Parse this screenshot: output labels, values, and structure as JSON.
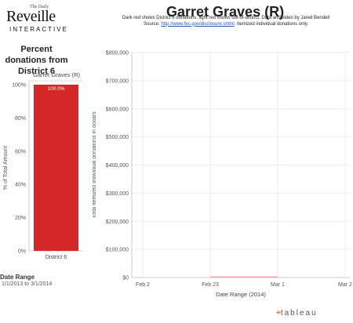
{
  "branding": {
    "logo_small": "The Daily",
    "logo_main": "Reveille",
    "logo_sub": "INTERACTIVE",
    "footer_logo": "+ t a b l e a u"
  },
  "header": {
    "title": "Garret Graves (R)",
    "subtitle_line1": "Dark red shows District 6 donations, light red shows out-of-district. Data and video by Jared Bendell",
    "subtitle_source_label": "Source:",
    "subtitle_source_link": "http://www.fec.gov/disclosure.shtml",
    "subtitle_tail": ". Itemized individual donations only."
  },
  "left_panel": {
    "title": "Percent donations from District 6",
    "date_range_label": "Date Range",
    "date_range_value": "1/1/2013 to 3/1/2014"
  },
  "colors": {
    "district_red": "#d62728",
    "out_of_district_red": "#f4a6a6",
    "axis_gray": "#cccccc",
    "text_gray": "#555555"
  },
  "chart_data": [
    {
      "type": "bar",
      "title": "Percent donations from District 6",
      "column_header": "Garret Graves (R)",
      "categories": [
        "District 6"
      ],
      "values": [
        100
      ],
      "data_labels": [
        "100.0%"
      ],
      "ylabel": "% of Total Amount",
      "ylim": [
        0,
        100
      ],
      "yticks": [
        "0%",
        "20%",
        "40%",
        "60%",
        "80%",
        "100%"
      ],
      "grid": false
    },
    {
      "type": "area",
      "xlabel": "Date Range (2014)",
      "ylabel": "Total itemized individual donations in dollars",
      "x_ticks": [
        "Feb 2",
        "Feb 23",
        "Mar 1",
        "Mar 2"
      ],
      "y_ticks": [
        "$0",
        "$100,000",
        "$200,000",
        "$300,000",
        "$400,000",
        "$500,000",
        "$600,000",
        "$700,000",
        "$800,000"
      ],
      "ylim": [
        0,
        800000
      ],
      "series": [
        {
          "color": "#f4a6a6",
          "x": [
            "Feb 23",
            "Mar 1"
          ],
          "y": [
            2000,
            2000
          ]
        }
      ],
      "grid": true
    }
  ]
}
